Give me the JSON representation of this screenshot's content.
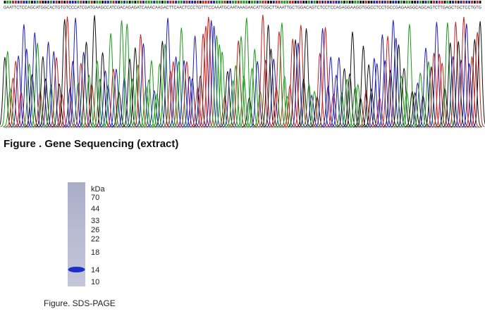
{
  "sequencing": {
    "sequence": "GAATTCTCCAGCATGGCACTGTGTCCCATCGATGAAGCCATCGACAGAGATCAAACAAGACTTCAACTCCCTGTTTCCAAATGCAATAAAGAACATTGGCTTAAATTGCTGGACAGTCTCCTCCAGAGGAAGGTGGCCTCCTGCCGAGAAGGCAGCAGTCTTGAGCTGCTCCTGTG",
    "caption": "Figure . Gene Sequencing (extract)"
  },
  "gel": {
    "unit": "kDa",
    "markers": [
      "70",
      "44",
      "33",
      "26",
      "22",
      "18",
      "14",
      "10"
    ],
    "caption": "Figure. SDS-PAGE"
  }
}
